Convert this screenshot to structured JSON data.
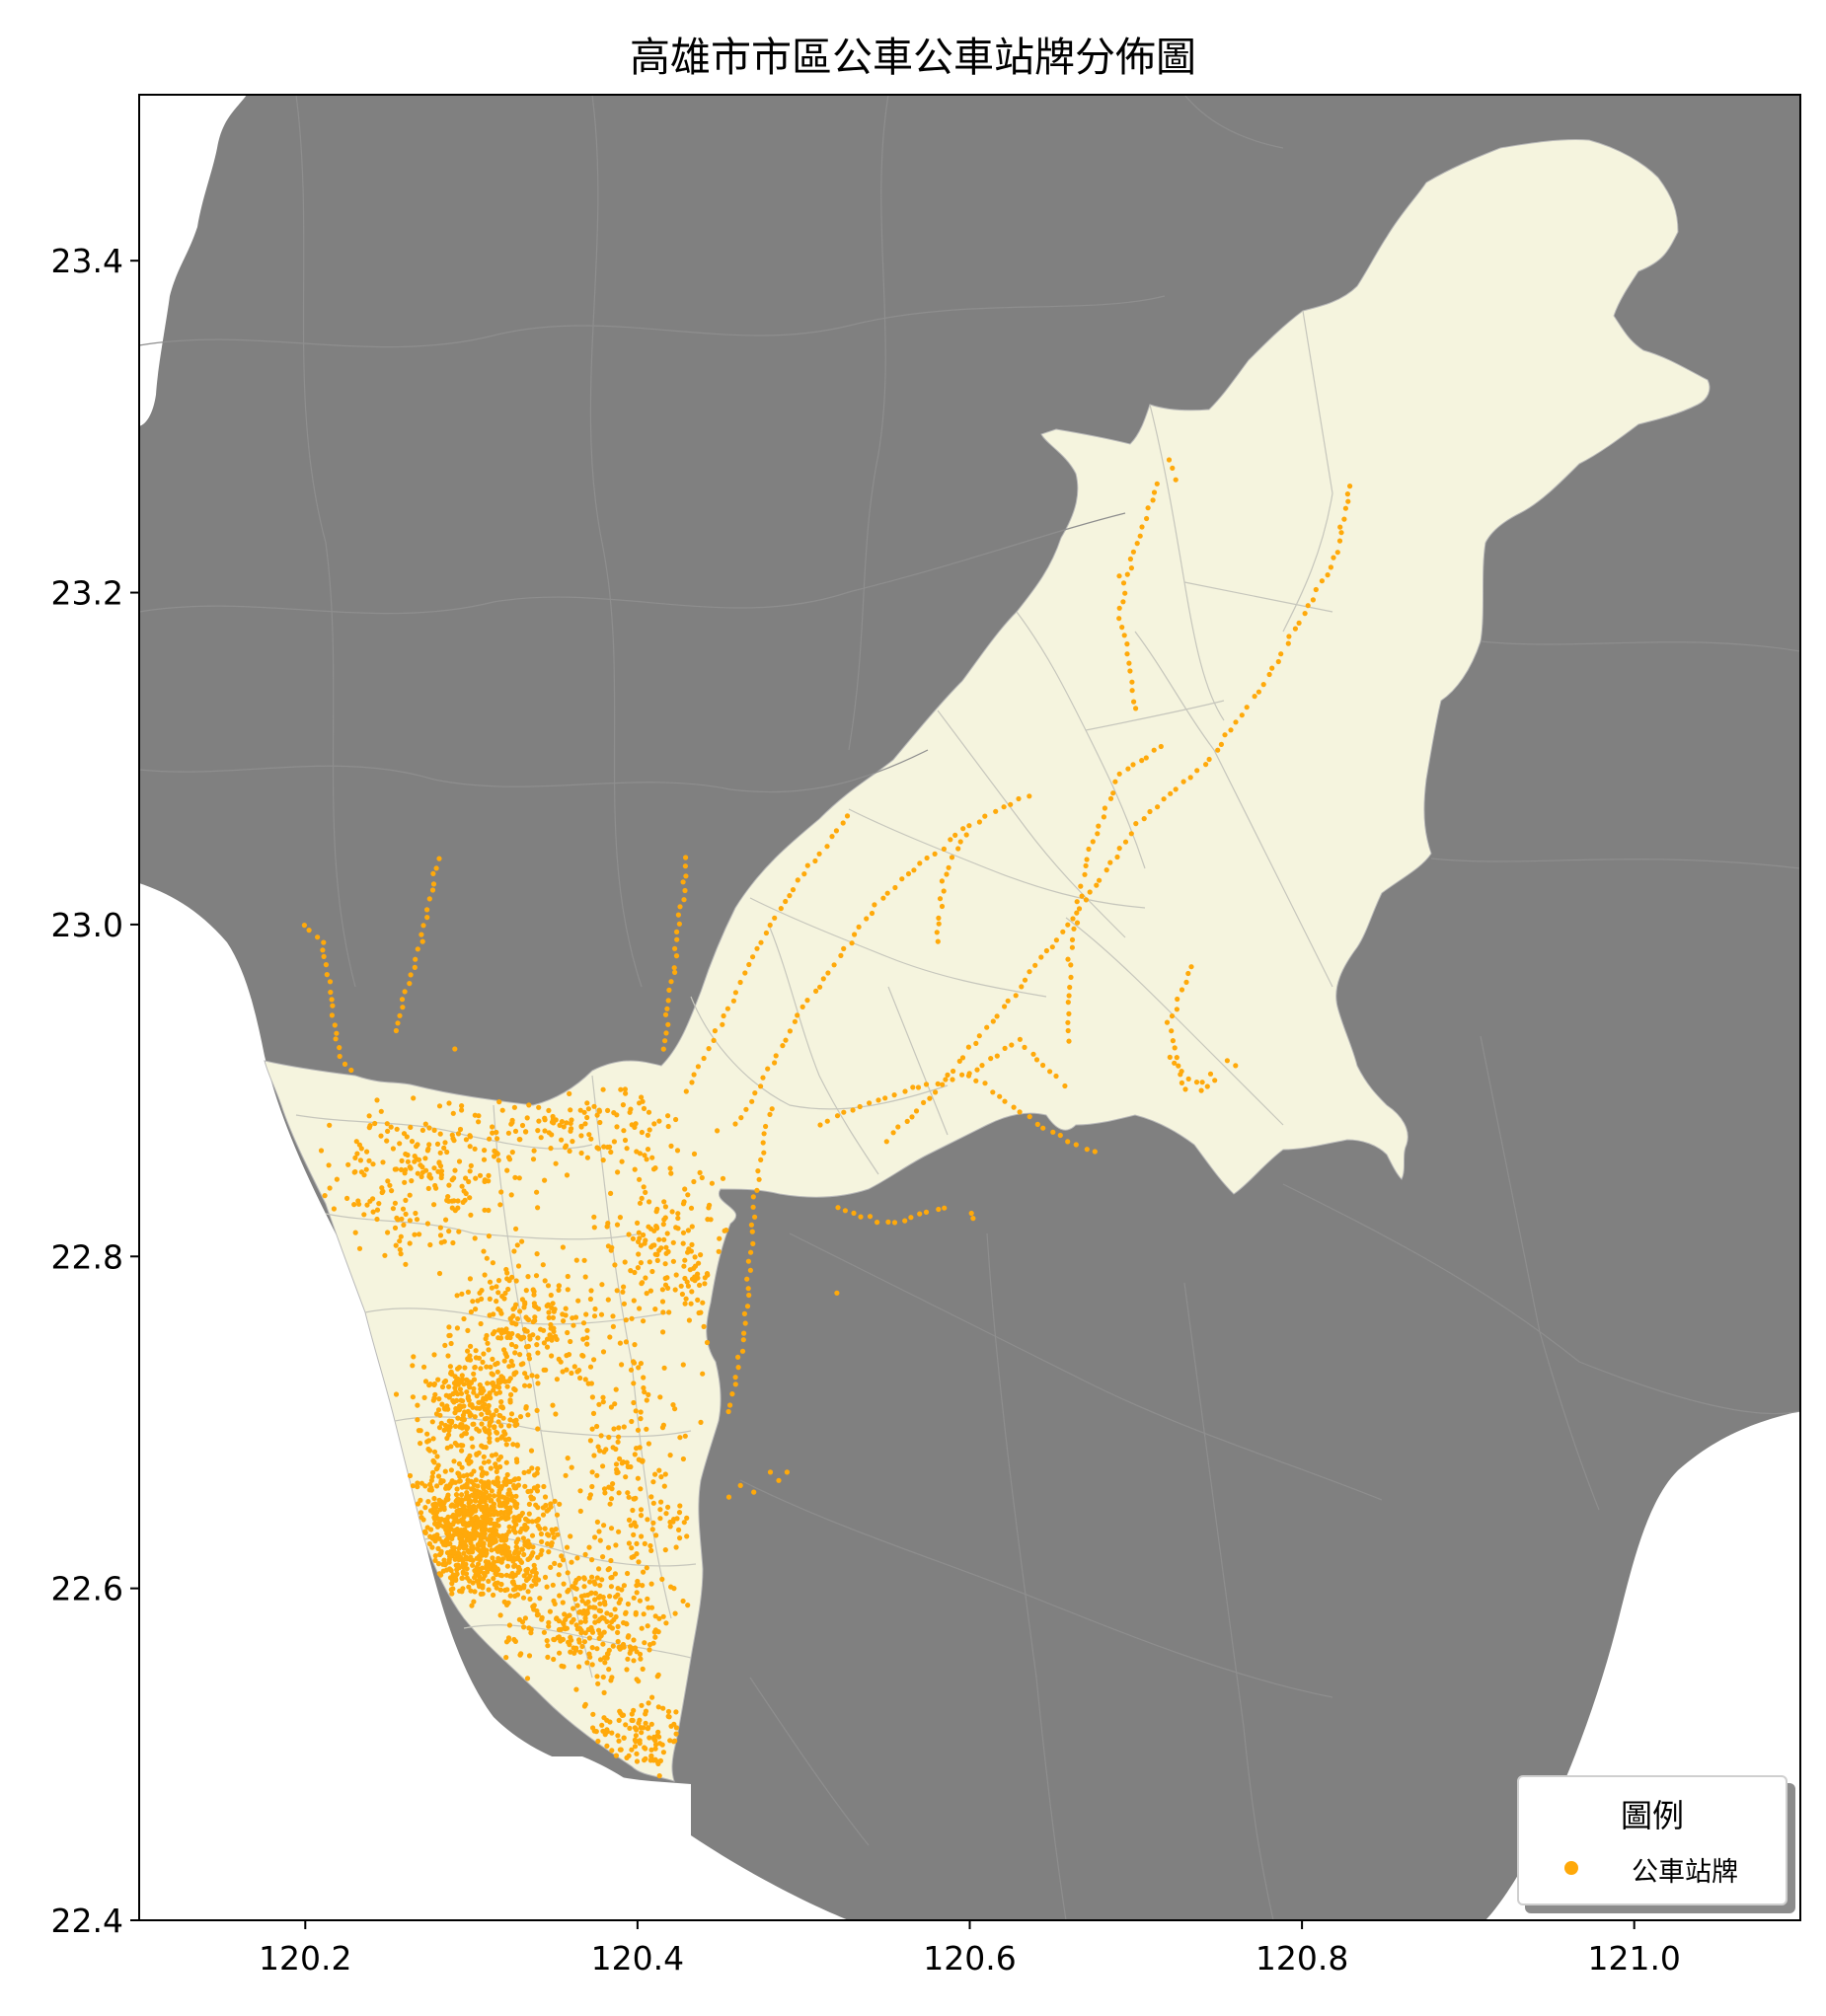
{
  "title": "高雄市市區公車公車站牌分佈圖",
  "colors": {
    "background_land": "#808080",
    "kaohsiung_fill": "#F5F4DE",
    "sea": "#FFFFFF",
    "stops": "#FFA90A",
    "district_lines": "#B9B9B9",
    "axes": "#000000"
  },
  "legend": {
    "title": "圖例",
    "items": [
      {
        "label": "公車站牌",
        "marker": "circle",
        "color": "#FFA90A"
      }
    ]
  },
  "chart_data": {
    "type": "scatter",
    "title": "高雄市市區公車公車站牌分佈圖",
    "xlim": [
      120.1,
      121.1
    ],
    "ylim": [
      22.4,
      23.5
    ],
    "xticks": [
      "120.2",
      "120.4",
      "120.6",
      "120.8",
      "121.0"
    ],
    "yticks": [
      "22.4",
      "22.6",
      "22.8",
      "23.0",
      "23.2",
      "23.4"
    ],
    "legend_placement": "bottom-right",
    "grid": false,
    "series": [
      {
        "name": "公車站牌",
        "clusters": [
          {
            "center": [
              120.305,
              22.635
            ],
            "spread": [
              0.035,
              0.035
            ],
            "count": 900
          },
          {
            "center": [
              120.3,
              22.71
            ],
            "spread": [
              0.03,
              0.025
            ],
            "count": 260
          },
          {
            "center": [
              120.33,
              22.76
            ],
            "spread": [
              0.04,
              0.035
            ],
            "count": 240
          },
          {
            "center": [
              120.37,
              22.58
            ],
            "spread": [
              0.035,
              0.03
            ],
            "count": 260
          },
          {
            "center": [
              120.27,
              22.85
            ],
            "spread": [
              0.05,
              0.04
            ],
            "count": 220
          },
          {
            "center": [
              120.4,
              22.66
            ],
            "spread": [
              0.03,
              0.08
            ],
            "count": 200
          },
          {
            "center": [
              120.42,
              22.8
            ],
            "spread": [
              0.04,
              0.05
            ],
            "count": 180
          },
          {
            "center": [
              120.36,
              22.88
            ],
            "spread": [
              0.05,
              0.02
            ],
            "count": 120
          },
          {
            "center": [
              120.4,
              22.51
            ],
            "spread": [
              0.03,
              0.02
            ],
            "count": 100
          }
        ],
        "routes": [
          [
            [
              120.2,
              23.0
            ],
            [
              120.21,
              22.99
            ],
            [
              120.215,
              22.96
            ],
            [
              120.22,
              22.92
            ],
            [
              120.23,
              22.91
            ]
          ],
          [
            [
              120.28,
              23.04
            ],
            [
              120.27,
              22.99
            ],
            [
              120.26,
              22.96
            ],
            [
              120.255,
              22.93
            ]
          ],
          [
            [
              120.43,
              22.9
            ],
            [
              120.455,
              22.95
            ],
            [
              120.48,
              23.0
            ],
            [
              120.5,
              23.03
            ],
            [
              120.53,
              23.07
            ]
          ],
          [
            [
              120.43,
              23.04
            ],
            [
              120.425,
              23.0
            ],
            [
              120.42,
              22.96
            ],
            [
              120.415,
              22.92
            ]
          ],
          [
            [
              120.46,
              22.88
            ],
            [
              120.5,
              22.95
            ],
            [
              120.55,
              23.02
            ],
            [
              120.6,
              23.06
            ],
            [
              120.64,
              23.08
            ]
          ],
          [
            [
              120.55,
              22.87
            ],
            [
              120.58,
              22.9
            ],
            [
              120.62,
              22.95
            ],
            [
              120.66,
              23.0
            ],
            [
              120.7,
              23.06
            ],
            [
              120.745,
              23.1
            ],
            [
              120.78,
              23.15
            ],
            [
              120.82,
              23.22
            ],
            [
              120.83,
              23.27
            ]
          ],
          [
            [
              120.66,
              22.93
            ],
            [
              120.66,
              22.98
            ],
            [
              120.67,
              23.04
            ],
            [
              120.69,
              23.09
            ],
            [
              120.72,
              23.11
            ]
          ],
          [
            [
              120.7,
              23.13
            ],
            [
              120.69,
              23.19
            ],
            [
              120.7,
              23.23
            ],
            [
              120.715,
              23.27
            ]
          ],
          [
            [
              120.51,
              22.88
            ],
            [
              120.56,
              22.9
            ],
            [
              120.6,
              22.91
            ],
            [
              120.64,
              22.88
            ],
            [
              120.68,
              22.86
            ]
          ],
          [
            [
              120.73,
              22.9
            ],
            [
              120.72,
              22.94
            ],
            [
              120.735,
              22.98
            ]
          ],
          [
            [
              120.48,
              22.89
            ],
            [
              120.47,
              22.83
            ],
            [
              120.465,
              22.76
            ],
            [
              120.455,
              22.7
            ]
          ],
          [
            [
              120.52,
              22.83
            ],
            [
              120.55,
              22.82
            ],
            [
              120.59,
              22.83
            ]
          ],
          [
            [
              120.58,
              22.99
            ],
            [
              120.585,
              23.03
            ],
            [
              120.6,
              23.06
            ]
          ],
          [
            [
              120.6,
              22.91
            ],
            [
              120.63,
              22.93
            ],
            [
              120.66,
              22.9
            ]
          ],
          [
            [
              120.72,
              22.92
            ],
            [
              120.74,
              22.9
            ],
            [
              120.75,
              22.91
            ]
          ]
        ],
        "isolated_points": [
          [
            120.601,
            22.826
          ],
          [
            120.602,
            22.823
          ],
          [
            120.52,
            22.778
          ],
          [
            120.485,
            22.665
          ],
          [
            120.47,
            22.658
          ],
          [
            120.48,
            22.67
          ],
          [
            120.49,
            22.67
          ],
          [
            120.455,
            22.655
          ],
          [
            120.462,
            22.662
          ],
          [
            120.29,
            22.925
          ],
          [
            120.76,
            22.915
          ],
          [
            120.74,
            22.905
          ],
          [
            120.745,
            22.91
          ],
          [
            120.755,
            22.918
          ],
          [
            120.69,
            23.21
          ],
          [
            120.72,
            23.28
          ],
          [
            120.722,
            23.275
          ],
          [
            120.724,
            23.268
          ]
        ]
      }
    ]
  }
}
